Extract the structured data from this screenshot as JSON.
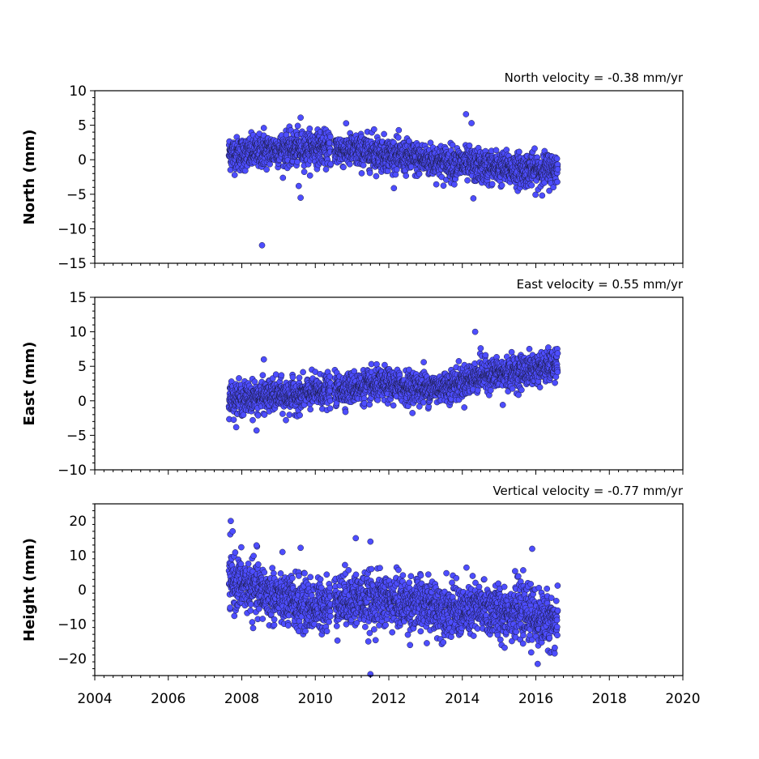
{
  "chart_data": {
    "type": "scatter",
    "layout": "3 vertically stacked panels sharing a time x-axis",
    "marker_color": "#4d4dff",
    "marker_edge_color": "#1a1a40",
    "xlim": [
      2004,
      2020
    ],
    "xticks": [
      2004,
      2006,
      2008,
      2010,
      2012,
      2014,
      2016,
      2018,
      2020
    ],
    "x_minor_step": 0.25,
    "x_tick_labels_on": "bottom panel only",
    "grid": false,
    "panels": [
      {
        "id": "north",
        "ylabel": "North (mm)",
        "annotation": "North velocity = -0.38 mm/yr",
        "ylim": [
          -15,
          10
        ],
        "yticks": [
          -15,
          -10,
          -5,
          0,
          5,
          10
        ],
        "tick_labels": [
          "−15",
          "−10",
          "−5",
          "0",
          "5",
          "10"
        ],
        "outliers": [
          [
            2008.55,
            -12.4
          ],
          [
            2009.6,
            6.1
          ],
          [
            2009.55,
            -3.8
          ],
          [
            2009.6,
            -5.5
          ],
          [
            2014.1,
            6.6
          ],
          [
            2014.25,
            5.3
          ],
          [
            2014.3,
            -5.6
          ],
          [
            2008.6,
            4.6
          ],
          [
            2011.6,
            4.4
          ]
        ],
        "data": [
          [
            2007.65,
            1.0
          ],
          [
            2008.0,
            0.8
          ],
          [
            2008.5,
            1.2
          ],
          [
            2009.0,
            1.5
          ],
          [
            2009.5,
            1.6
          ],
          [
            2010.0,
            1.8
          ],
          [
            2010.4,
            1.6
          ],
          [
            2010.6,
            1.5
          ],
          [
            2011.0,
            1.3
          ],
          [
            2011.5,
            1.1
          ],
          [
            2012.0,
            0.8
          ],
          [
            2012.5,
            0.3
          ],
          [
            2013.0,
            0.0
          ],
          [
            2013.5,
            -0.3
          ],
          [
            2014.0,
            -0.6
          ],
          [
            2014.5,
            -1.0
          ],
          [
            2015.0,
            -1.2
          ],
          [
            2015.5,
            -1.4
          ],
          [
            2016.0,
            -1.5
          ],
          [
            2016.6,
            -1.3
          ]
        ],
        "scatter_width_mm": 1.7
      },
      {
        "id": "east",
        "ylabel": "East (mm)",
        "annotation": "East velocity = 0.55 mm/yr",
        "ylim": [
          -10,
          15
        ],
        "yticks": [
          -10,
          -5,
          0,
          5,
          10,
          15
        ],
        "tick_labels": [
          "−10",
          "−5",
          "0",
          "5",
          "10",
          "15"
        ],
        "outliers": [
          [
            2008.6,
            6.0
          ],
          [
            2008.4,
            -4.3
          ],
          [
            2012.95,
            5.6
          ],
          [
            2014.35,
            10.0
          ],
          [
            2014.5,
            7.6
          ],
          [
            2015.1,
            -0.6
          ],
          [
            2009.2,
            -2.8
          ]
        ],
        "data": [
          [
            2007.65,
            0.5
          ],
          [
            2008.0,
            0.3
          ],
          [
            2008.5,
            0.6
          ],
          [
            2009.0,
            0.8
          ],
          [
            2009.5,
            0.7
          ],
          [
            2010.0,
            1.3
          ],
          [
            2010.4,
            1.4
          ],
          [
            2010.6,
            1.6
          ],
          [
            2011.0,
            1.9
          ],
          [
            2011.5,
            2.1
          ],
          [
            2012.0,
            2.3
          ],
          [
            2012.5,
            2.0
          ],
          [
            2013.0,
            1.8
          ],
          [
            2013.5,
            2.0
          ],
          [
            2014.0,
            2.7
          ],
          [
            2014.5,
            3.8
          ],
          [
            2015.0,
            3.9
          ],
          [
            2015.5,
            4.2
          ],
          [
            2016.0,
            4.6
          ],
          [
            2016.6,
            5.2
          ]
        ],
        "scatter_width_mm": 1.6
      },
      {
        "id": "height",
        "ylabel": "Height (mm)",
        "annotation": "Vertical velocity = -0.77 mm/yr",
        "ylim": [
          -25,
          25
        ],
        "yticks": [
          -20,
          -10,
          0,
          10,
          20
        ],
        "tick_labels": [
          "−20",
          "−10",
          "0",
          "10",
          "20"
        ],
        "outliers": [
          [
            2007.7,
            20.0
          ],
          [
            2007.75,
            17.0
          ],
          [
            2011.1,
            15.0
          ],
          [
            2011.5,
            14.0
          ],
          [
            2011.5,
            -24.6
          ],
          [
            2016.05,
            -21.6
          ],
          [
            2015.9,
            11.9
          ],
          [
            2009.6,
            12.2
          ],
          [
            2008.4,
            12.9
          ]
        ],
        "data": [
          [
            2007.65,
            2.5
          ],
          [
            2008.0,
            1.5
          ],
          [
            2008.5,
            -0.5
          ],
          [
            2009.0,
            -2.5
          ],
          [
            2009.5,
            -4.0
          ],
          [
            2010.0,
            -5.0
          ],
          [
            2010.4,
            -4.0
          ],
          [
            2010.6,
            -3.0
          ],
          [
            2011.0,
            -2.5
          ],
          [
            2011.5,
            -3.5
          ],
          [
            2012.0,
            -3.0
          ],
          [
            2012.5,
            -4.0
          ],
          [
            2013.0,
            -4.5
          ],
          [
            2013.5,
            -5.5
          ],
          [
            2014.0,
            -6.5
          ],
          [
            2014.5,
            -5.5
          ],
          [
            2015.0,
            -6.5
          ],
          [
            2015.5,
            -6.0
          ],
          [
            2016.0,
            -8.0
          ],
          [
            2016.6,
            -9.5
          ]
        ],
        "scatter_width_mm": 5.5
      }
    ],
    "xaxis_tick_labels": [
      "2004",
      "2006",
      "2008",
      "2010",
      "2012",
      "2014",
      "2016",
      "2018",
      "2020"
    ]
  }
}
